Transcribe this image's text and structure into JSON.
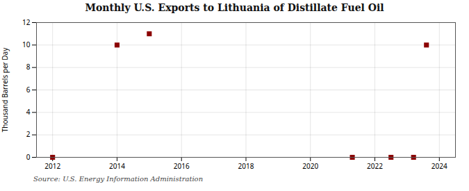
{
  "chart_data": {
    "type": "scatter",
    "title": "Monthly U.S. Exports to Lithuania of Distillate Fuel Oil",
    "ylabel": "Thousand Barrels per Day",
    "source": "Source: U.S. Energy Information Administration",
    "x": [
      2012.0,
      2014.0,
      2015.0,
      2021.3,
      2022.5,
      2023.2,
      2023.6
    ],
    "values": [
      0,
      10,
      11,
      0,
      0,
      0,
      10
    ],
    "color": "#8b0000",
    "marker": "square",
    "xlim": [
      2011.5,
      2024.5
    ],
    "xticks": [
      2012,
      2014,
      2016,
      2018,
      2020,
      2022,
      2024
    ],
    "ylim": [
      0,
      12
    ],
    "yticks": [
      0,
      2,
      4,
      6,
      8,
      10,
      12
    ],
    "grid": true
  }
}
